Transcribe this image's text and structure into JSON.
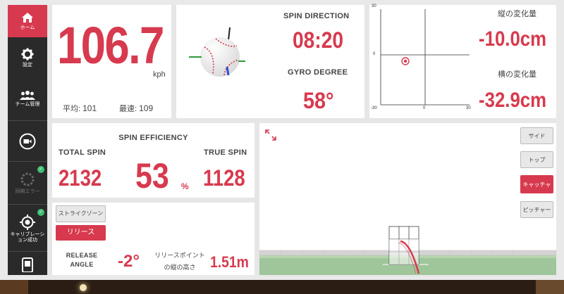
{
  "sidebar": {
    "items": [
      {
        "label": "ホーム",
        "icon": "home-icon"
      },
      {
        "label": "設定",
        "icon": "gear-icon"
      },
      {
        "label": "チーム管理",
        "icon": "team-icon"
      },
      {
        "label": "",
        "icon": "camera-icon"
      },
      {
        "label": "同期エラー",
        "icon": "sync-icon"
      },
      {
        "label": "キャリブレーション成功",
        "icon": "crosshair-icon"
      },
      {
        "label": "",
        "icon": "device-icon"
      }
    ]
  },
  "speed": {
    "value": "106.7",
    "unit": "kph",
    "avg_label": "平均:",
    "avg_value": "101",
    "max_label": "最速:",
    "max_value": "109"
  },
  "spin_direction": {
    "label": "SPIN DIRECTION",
    "value": "08:20",
    "gyro_label": "GYRO DEGREE",
    "gyro_value": "58°"
  },
  "break_chart": {
    "tick_top": "30",
    "tick_left": "0",
    "tick_bottom_left": "-30",
    "tick_bottom_mid": "0",
    "tick_bottom_right": "30",
    "vertical_label": "縦の変化量",
    "vertical_value": "-10.0cm",
    "horizontal_label": "横の変化量",
    "horizontal_value": "-32.9cm"
  },
  "spin_efficiency": {
    "title": "SPIN EFFICIENCY",
    "total_label": "TOTAL SPIN",
    "total_value": "2132",
    "eff_value": "53",
    "eff_unit": "%",
    "true_label": "TRUE SPIN",
    "true_value": "1128"
  },
  "release": {
    "strike_zone_label": "ストライクゾーン",
    "release_label": "リリース",
    "angle_label_1": "RELEASE",
    "angle_label_2": "ANGLE",
    "angle_value": "-2°",
    "height_label_1": "リリースポイント",
    "height_label_2": "の縦の高さ",
    "height_value": "1.51m"
  },
  "view_buttons": [
    "サイド",
    "トップ",
    "キャッチャー",
    "ピッチャー"
  ],
  "selected_view": "キャッチャー",
  "colors": {
    "accent": "#d73a4e",
    "sidebar": "#2a2a2a",
    "field": "#9fc69a"
  }
}
